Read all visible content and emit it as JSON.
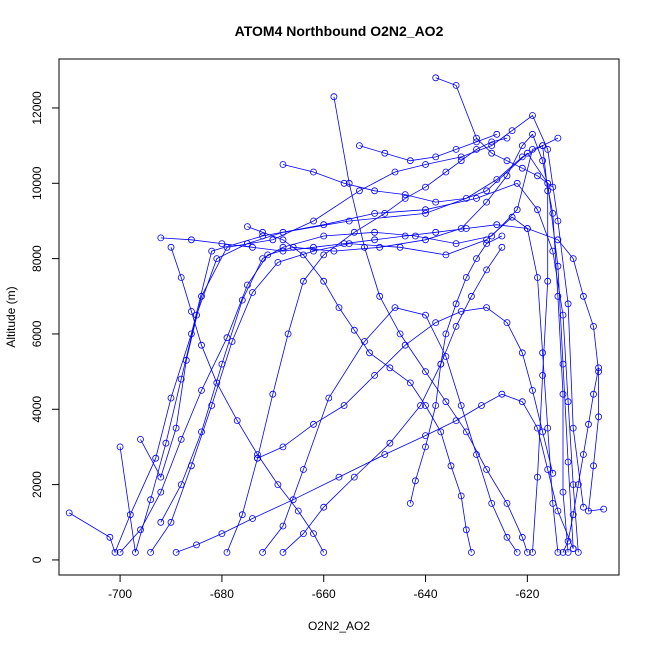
{
  "chart_data": {
    "type": "line",
    "title": "ATOM4 Northbound O2N2_AO2",
    "xlabel": "O2N2_AO2",
    "ylabel": "Altitude (m)",
    "xlim": [
      -712,
      -602
    ],
    "ylim": [
      -400,
      13300
    ],
    "x_ticks": [
      -700,
      -680,
      -660,
      -640,
      -620
    ],
    "y_ticks": [
      0,
      2000,
      4000,
      6000,
      8000,
      10000,
      12000
    ],
    "grid": false,
    "markers": "open-circle",
    "color": "#0000ff",
    "series": [
      {
        "points": [
          [
            -710,
            1250
          ],
          [
            -702,
            600
          ],
          [
            -701,
            200
          ],
          [
            -698,
            1200
          ],
          [
            -693,
            2700
          ],
          [
            -690,
            4300
          ],
          [
            -686,
            6000
          ],
          [
            -682,
            8200
          ],
          [
            -672,
            8600
          ],
          [
            -660,
            8900
          ],
          [
            -650,
            9200
          ],
          [
            -640,
            9300
          ],
          [
            -630,
            9600
          ],
          [
            -622,
            10000
          ],
          [
            -618,
            9300
          ],
          [
            -615,
            8200
          ],
          [
            -613,
            6500
          ],
          [
            -612,
            4200
          ],
          [
            -611,
            2000
          ],
          [
            -610,
            200
          ]
        ]
      },
      {
        "points": [
          [
            -700,
            3000
          ],
          [
            -697,
            200
          ],
          [
            -694,
            1600
          ],
          [
            -691,
            3100
          ],
          [
            -688,
            4800
          ],
          [
            -685,
            6500
          ],
          [
            -681,
            8000
          ],
          [
            -675,
            8400
          ],
          [
            -668,
            8700
          ],
          [
            -655,
            9000
          ],
          [
            -640,
            9200
          ],
          [
            -628,
            9800
          ],
          [
            -620,
            10800
          ],
          [
            -616,
            10000
          ],
          [
            -614,
            7800
          ],
          [
            -613,
            5200
          ],
          [
            -612,
            2600
          ],
          [
            -611,
            300
          ]
        ]
      },
      {
        "points": [
          [
            -696,
            3200
          ],
          [
            -692,
            2200
          ],
          [
            -689,
            3500
          ],
          [
            -687,
            5300
          ],
          [
            -684,
            7000
          ],
          [
            -679,
            8300
          ],
          [
            -670,
            8500
          ],
          [
            -662,
            9000
          ],
          [
            -653,
            9800
          ],
          [
            -646,
            10300
          ],
          [
            -640,
            10500
          ],
          [
            -633,
            10700
          ],
          [
            -627,
            11000
          ],
          [
            -623,
            11400
          ],
          [
            -619,
            11800
          ],
          [
            -616,
            10900
          ],
          [
            -614,
            9000
          ],
          [
            -612,
            6800
          ],
          [
            -611,
            3500
          ],
          [
            -609,
            1400
          ]
        ]
      },
      {
        "points": [
          [
            -694,
            200
          ],
          [
            -690,
            1000
          ],
          [
            -686,
            2500
          ],
          [
            -682,
            4100
          ],
          [
            -678,
            5800
          ],
          [
            -674,
            7100
          ],
          [
            -669,
            7900
          ],
          [
            -662,
            8200
          ],
          [
            -655,
            8400
          ],
          [
            -645,
            8300
          ],
          [
            -636,
            8100
          ],
          [
            -628,
            8500
          ],
          [
            -623,
            9100
          ],
          [
            -620,
            8800
          ],
          [
            -618,
            7500
          ],
          [
            -617,
            5500
          ],
          [
            -616,
            3500
          ],
          [
            -615,
            1500
          ],
          [
            -614,
            200
          ]
        ]
      },
      {
        "points": [
          [
            -692,
            1000
          ],
          [
            -688,
            2000
          ],
          [
            -684,
            3400
          ],
          [
            -680,
            5200
          ],
          [
            -676,
            6900
          ],
          [
            -672,
            8000
          ],
          [
            -668,
            8300
          ],
          [
            -660,
            8600
          ],
          [
            -650,
            8700
          ],
          [
            -642,
            8600
          ],
          [
            -634,
            8400
          ],
          [
            -627,
            8600
          ],
          [
            -622,
            9300
          ],
          [
            -619,
            10900
          ],
          [
            -617,
            11000
          ],
          [
            -616,
            9800
          ],
          [
            -616,
            7400
          ],
          [
            -617,
            4900
          ],
          [
            -618,
            2200
          ],
          [
            -619,
            200
          ]
        ]
      },
      {
        "points": [
          [
            -700,
            200
          ],
          [
            -696,
            800
          ],
          [
            -692,
            1800
          ],
          [
            -688,
            3200
          ],
          [
            -684,
            4500
          ],
          [
            -679,
            5900
          ],
          [
            -675,
            7300
          ],
          [
            -671,
            8100
          ],
          [
            -666,
            8300
          ],
          [
            -658,
            8200
          ],
          [
            -649,
            8300
          ],
          [
            -640,
            8500
          ],
          [
            -633,
            8800
          ],
          [
            -628,
            9500
          ],
          [
            -624,
            10200
          ],
          [
            -621,
            11000
          ],
          [
            -619,
            11300
          ],
          [
            -617,
            10600
          ],
          [
            -615,
            9200
          ],
          [
            -614,
            7000
          ],
          [
            -613,
            4400
          ],
          [
            -613,
            1800
          ],
          [
            -612,
            200
          ]
        ]
      },
      {
        "points": [
          [
            -672,
            200
          ],
          [
            -668,
            900
          ],
          [
            -664,
            2400
          ],
          [
            -659,
            4300
          ],
          [
            -652,
            5800
          ],
          [
            -646,
            6700
          ],
          [
            -640,
            6500
          ],
          [
            -636,
            5400
          ],
          [
            -633,
            4100
          ],
          [
            -630,
            2800
          ],
          [
            -627,
            1500
          ],
          [
            -624,
            600
          ],
          [
            -622,
            200
          ]
        ]
      },
      {
        "points": [
          [
            -689,
            200
          ],
          [
            -685,
            400
          ],
          [
            -680,
            700
          ],
          [
            -674,
            1100
          ],
          [
            -666,
            1600
          ],
          [
            -657,
            2200
          ],
          [
            -648,
            2800
          ],
          [
            -640,
            3300
          ],
          [
            -634,
            3700
          ],
          [
            -629,
            4100
          ],
          [
            -625,
            4400
          ],
          [
            -621,
            4200
          ],
          [
            -618,
            3500
          ],
          [
            -616,
            2400
          ],
          [
            -614,
            1300
          ],
          [
            -611,
            300
          ]
        ]
      },
      {
        "points": [
          [
            -679,
            200
          ],
          [
            -676,
            1200
          ],
          [
            -673,
            2700
          ],
          [
            -670,
            4400
          ],
          [
            -667,
            6000
          ],
          [
            -664,
            7400
          ],
          [
            -660,
            8100
          ],
          [
            -654,
            8700
          ],
          [
            -648,
            9200
          ],
          [
            -644,
            9600
          ],
          [
            -640,
            9900
          ],
          [
            -636,
            10300
          ],
          [
            -633,
            10600
          ],
          [
            -630,
            10900
          ],
          [
            -627,
            11100
          ],
          [
            -624,
            11200
          ]
        ]
      },
      {
        "points": [
          [
            -668,
            200
          ],
          [
            -664,
            700
          ],
          [
            -660,
            1400
          ],
          [
            -654,
            2200
          ],
          [
            -647,
            3100
          ],
          [
            -641,
            4100
          ],
          [
            -637,
            5200
          ],
          [
            -634,
            6200
          ],
          [
            -631,
            7000
          ],
          [
            -628,
            7700
          ],
          [
            -625,
            8300
          ]
        ]
      },
      {
        "points": [
          [
            -658,
            12300
          ],
          [
            -655,
            10000
          ],
          [
            -652,
            8300
          ],
          [
            -649,
            7000
          ],
          [
            -645,
            6000
          ],
          [
            -640,
            5000
          ],
          [
            -636,
            4200
          ],
          [
            -632,
            3400
          ],
          [
            -628,
            2400
          ],
          [
            -624,
            1500
          ],
          [
            -621,
            600
          ],
          [
            -620,
            200
          ]
        ]
      },
      {
        "points": [
          [
            -638,
            12800
          ],
          [
            -634,
            12600
          ],
          [
            -630,
            11200
          ],
          [
            -627,
            10800
          ],
          [
            -624,
            10600
          ],
          [
            -621,
            10400
          ],
          [
            -618,
            10200
          ],
          [
            -615,
            9900
          ]
        ]
      },
      {
        "points": [
          [
            -668,
            10500
          ],
          [
            -662,
            10300
          ],
          [
            -656,
            10000
          ],
          [
            -650,
            9800
          ],
          [
            -644,
            9700
          ],
          [
            -638,
            9500
          ],
          [
            -632,
            9600
          ],
          [
            -626,
            10100
          ],
          [
            -621,
            10700
          ],
          [
            -617,
            11000
          ],
          [
            -614,
            11200
          ]
        ]
      },
      {
        "points": [
          [
            -653,
            11000
          ],
          [
            -648,
            10800
          ],
          [
            -643,
            10600
          ],
          [
            -638,
            10700
          ],
          [
            -634,
            10900
          ],
          [
            -630,
            11100
          ],
          [
            -626,
            11300
          ]
        ]
      },
      {
        "points": [
          [
            -692,
            8550
          ],
          [
            -686,
            8500
          ],
          [
            -680,
            8400
          ],
          [
            -674,
            8300
          ],
          [
            -668,
            8200
          ],
          [
            -662,
            8300
          ],
          [
            -656,
            8400
          ],
          [
            -650,
            8500
          ],
          [
            -644,
            8600
          ],
          [
            -638,
            8700
          ],
          [
            -632,
            8800
          ],
          [
            -626,
            8900
          ],
          [
            -620,
            8800
          ],
          [
            -614,
            8500
          ],
          [
            -611,
            8000
          ],
          [
            -609,
            7000
          ],
          [
            -607,
            6200
          ],
          [
            -606,
            5000
          ],
          [
            -606,
            3800
          ],
          [
            -607,
            2500
          ],
          [
            -608,
            1300
          ],
          [
            -605,
            1350
          ]
        ]
      },
      {
        "points": [
          [
            -675,
            8850
          ],
          [
            -672,
            8700
          ],
          [
            -668,
            8500
          ],
          [
            -664,
            8100
          ],
          [
            -660,
            7400
          ],
          [
            -657,
            6700
          ],
          [
            -654,
            6100
          ],
          [
            -651,
            5500
          ],
          [
            -647,
            5100
          ],
          [
            -643,
            4700
          ],
          [
            -640,
            4100
          ],
          [
            -637,
            3400
          ],
          [
            -635,
            2500
          ],
          [
            -633,
            1700
          ],
          [
            -632,
            800
          ],
          [
            -631,
            200
          ]
        ]
      },
      {
        "points": [
          [
            -673,
            2700
          ],
          [
            -668,
            3000
          ],
          [
            -662,
            3600
          ],
          [
            -656,
            4100
          ],
          [
            -650,
            4900
          ],
          [
            -644,
            5700
          ],
          [
            -638,
            6300
          ],
          [
            -633,
            6600
          ],
          [
            -628,
            6700
          ],
          [
            -624,
            6300
          ],
          [
            -621,
            5500
          ],
          [
            -619,
            4500
          ],
          [
            -617,
            3400
          ],
          [
            -615,
            2300
          ]
        ]
      },
      {
        "points": [
          [
            -660,
            200
          ],
          [
            -662,
            700
          ],
          [
            -665,
            1300
          ],
          [
            -669,
            2000
          ],
          [
            -673,
            2800
          ],
          [
            -677,
            3700
          ],
          [
            -681,
            4700
          ],
          [
            -684,
            5700
          ],
          [
            -686,
            6600
          ],
          [
            -688,
            7500
          ],
          [
            -690,
            8300
          ]
        ]
      },
      {
        "points": [
          [
            -643,
            1500
          ],
          [
            -642,
            2100
          ],
          [
            -640,
            3000
          ],
          [
            -638,
            4100
          ],
          [
            -637,
            5200
          ],
          [
            -636,
            6000
          ],
          [
            -634,
            6800
          ],
          [
            -632,
            7500
          ],
          [
            -630,
            8000
          ],
          [
            -628,
            8400
          ],
          [
            -625,
            8600
          ]
        ]
      },
      {
        "points": [
          [
            -606,
            5100
          ],
          [
            -607,
            4400
          ],
          [
            -608,
            3600
          ],
          [
            -609,
            2800
          ],
          [
            -610,
            2000
          ],
          [
            -611,
            1200
          ],
          [
            -612,
            500
          ],
          [
            -613,
            200
          ]
        ]
      }
    ]
  }
}
